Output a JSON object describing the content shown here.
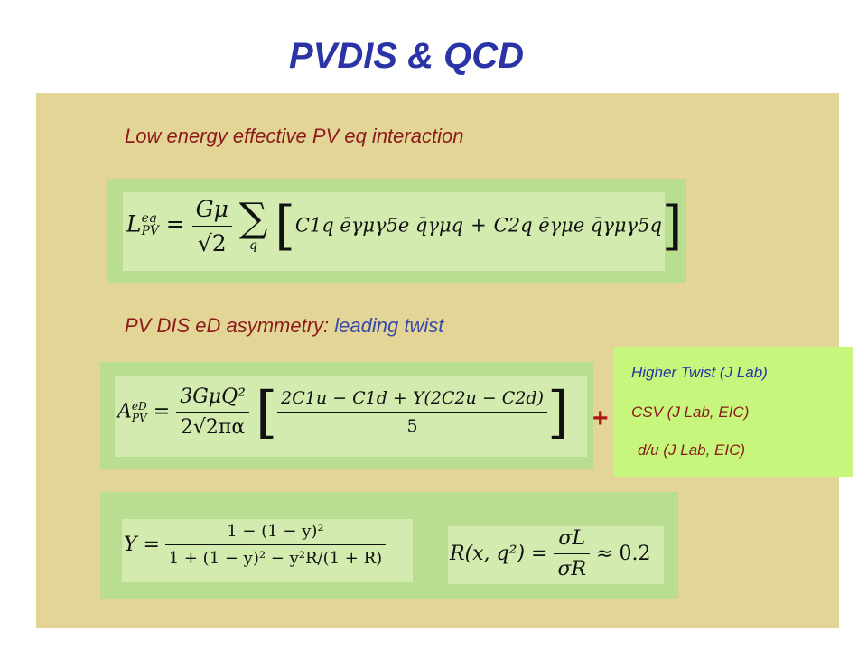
{
  "title": "PVDIS & QCD",
  "heading1": "Low energy effective PV eq interaction",
  "heading2_prefix": "PV DIS eD asymmetry: ",
  "heading2_suffix": "leading twist",
  "plus_sign": "+",
  "green_box": {
    "line1": "Higher Twist (J Lab)",
    "line2": "CSV (J Lab, EIC)",
    "line3": "d/u (J Lab, EIC)"
  },
  "eq1": {
    "lhs": "L",
    "lhs_sup": "eq",
    "lhs_sub": "PV",
    "equals": "=",
    "num": "Gμ",
    "den": "√2",
    "sum": "∑",
    "sum_sub": "q",
    "bracket_open": "[",
    "term1": "C1q ēγμγ5e q̄γμq",
    "plus": "+",
    "term2": "C2q ēγμe q̄γμγ5q",
    "bracket_close": "]"
  },
  "eq2": {
    "lhs": "A",
    "lhs_sup": "eD",
    "lhs_sub": "PV",
    "equals": "=",
    "num": "3GμQ²",
    "den": "2√2πα",
    "bracket_open": "[",
    "inner_num": "2C1u − C1d + Y(2C2u − C2d)",
    "inner_den": "5",
    "bracket_close": "]"
  },
  "eq3": {
    "lhs": "Y =",
    "num": "1 − (1 − y)²",
    "den": "1 + (1 − y)² − y²R/(1 + R)"
  },
  "eq4": {
    "lhs": "R(x, q²) =",
    "num": "σL",
    "den": "σR",
    "rhs": "≈ 0.2"
  }
}
